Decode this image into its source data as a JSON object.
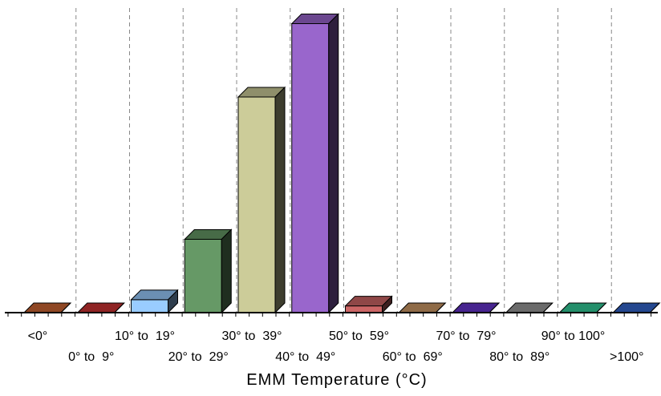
{
  "chart_data": {
    "type": "bar",
    "style": "3d-column",
    "xlabel": "EMM Temperature (°C)",
    "ylabel": "",
    "grid": "vertical-dashed",
    "legend": "none",
    "ylim": [
      0,
      100
    ],
    "categories": [
      "<0°",
      "0° to  9°",
      "10° to  19°",
      "20° to  29°",
      "30° to  39°",
      "40° to  49°",
      "50° to  59°",
      "60° to  69°",
      "70° to  79°",
      "80° to  89°",
      "90° to 100°",
      ">100°"
    ],
    "values": [
      0,
      0,
      4.4,
      25,
      73.5,
      98.5,
      2.3,
      0,
      0,
      0,
      0,
      0
    ],
    "colors": [
      "#cc6633",
      "#cc3333",
      "#99ccff",
      "#669966",
      "#cccc99",
      "#9966cc",
      "#cc6666",
      "#cc9966",
      "#6633cc",
      "#999999",
      "#33cc99",
      "#3366cc"
    ]
  }
}
